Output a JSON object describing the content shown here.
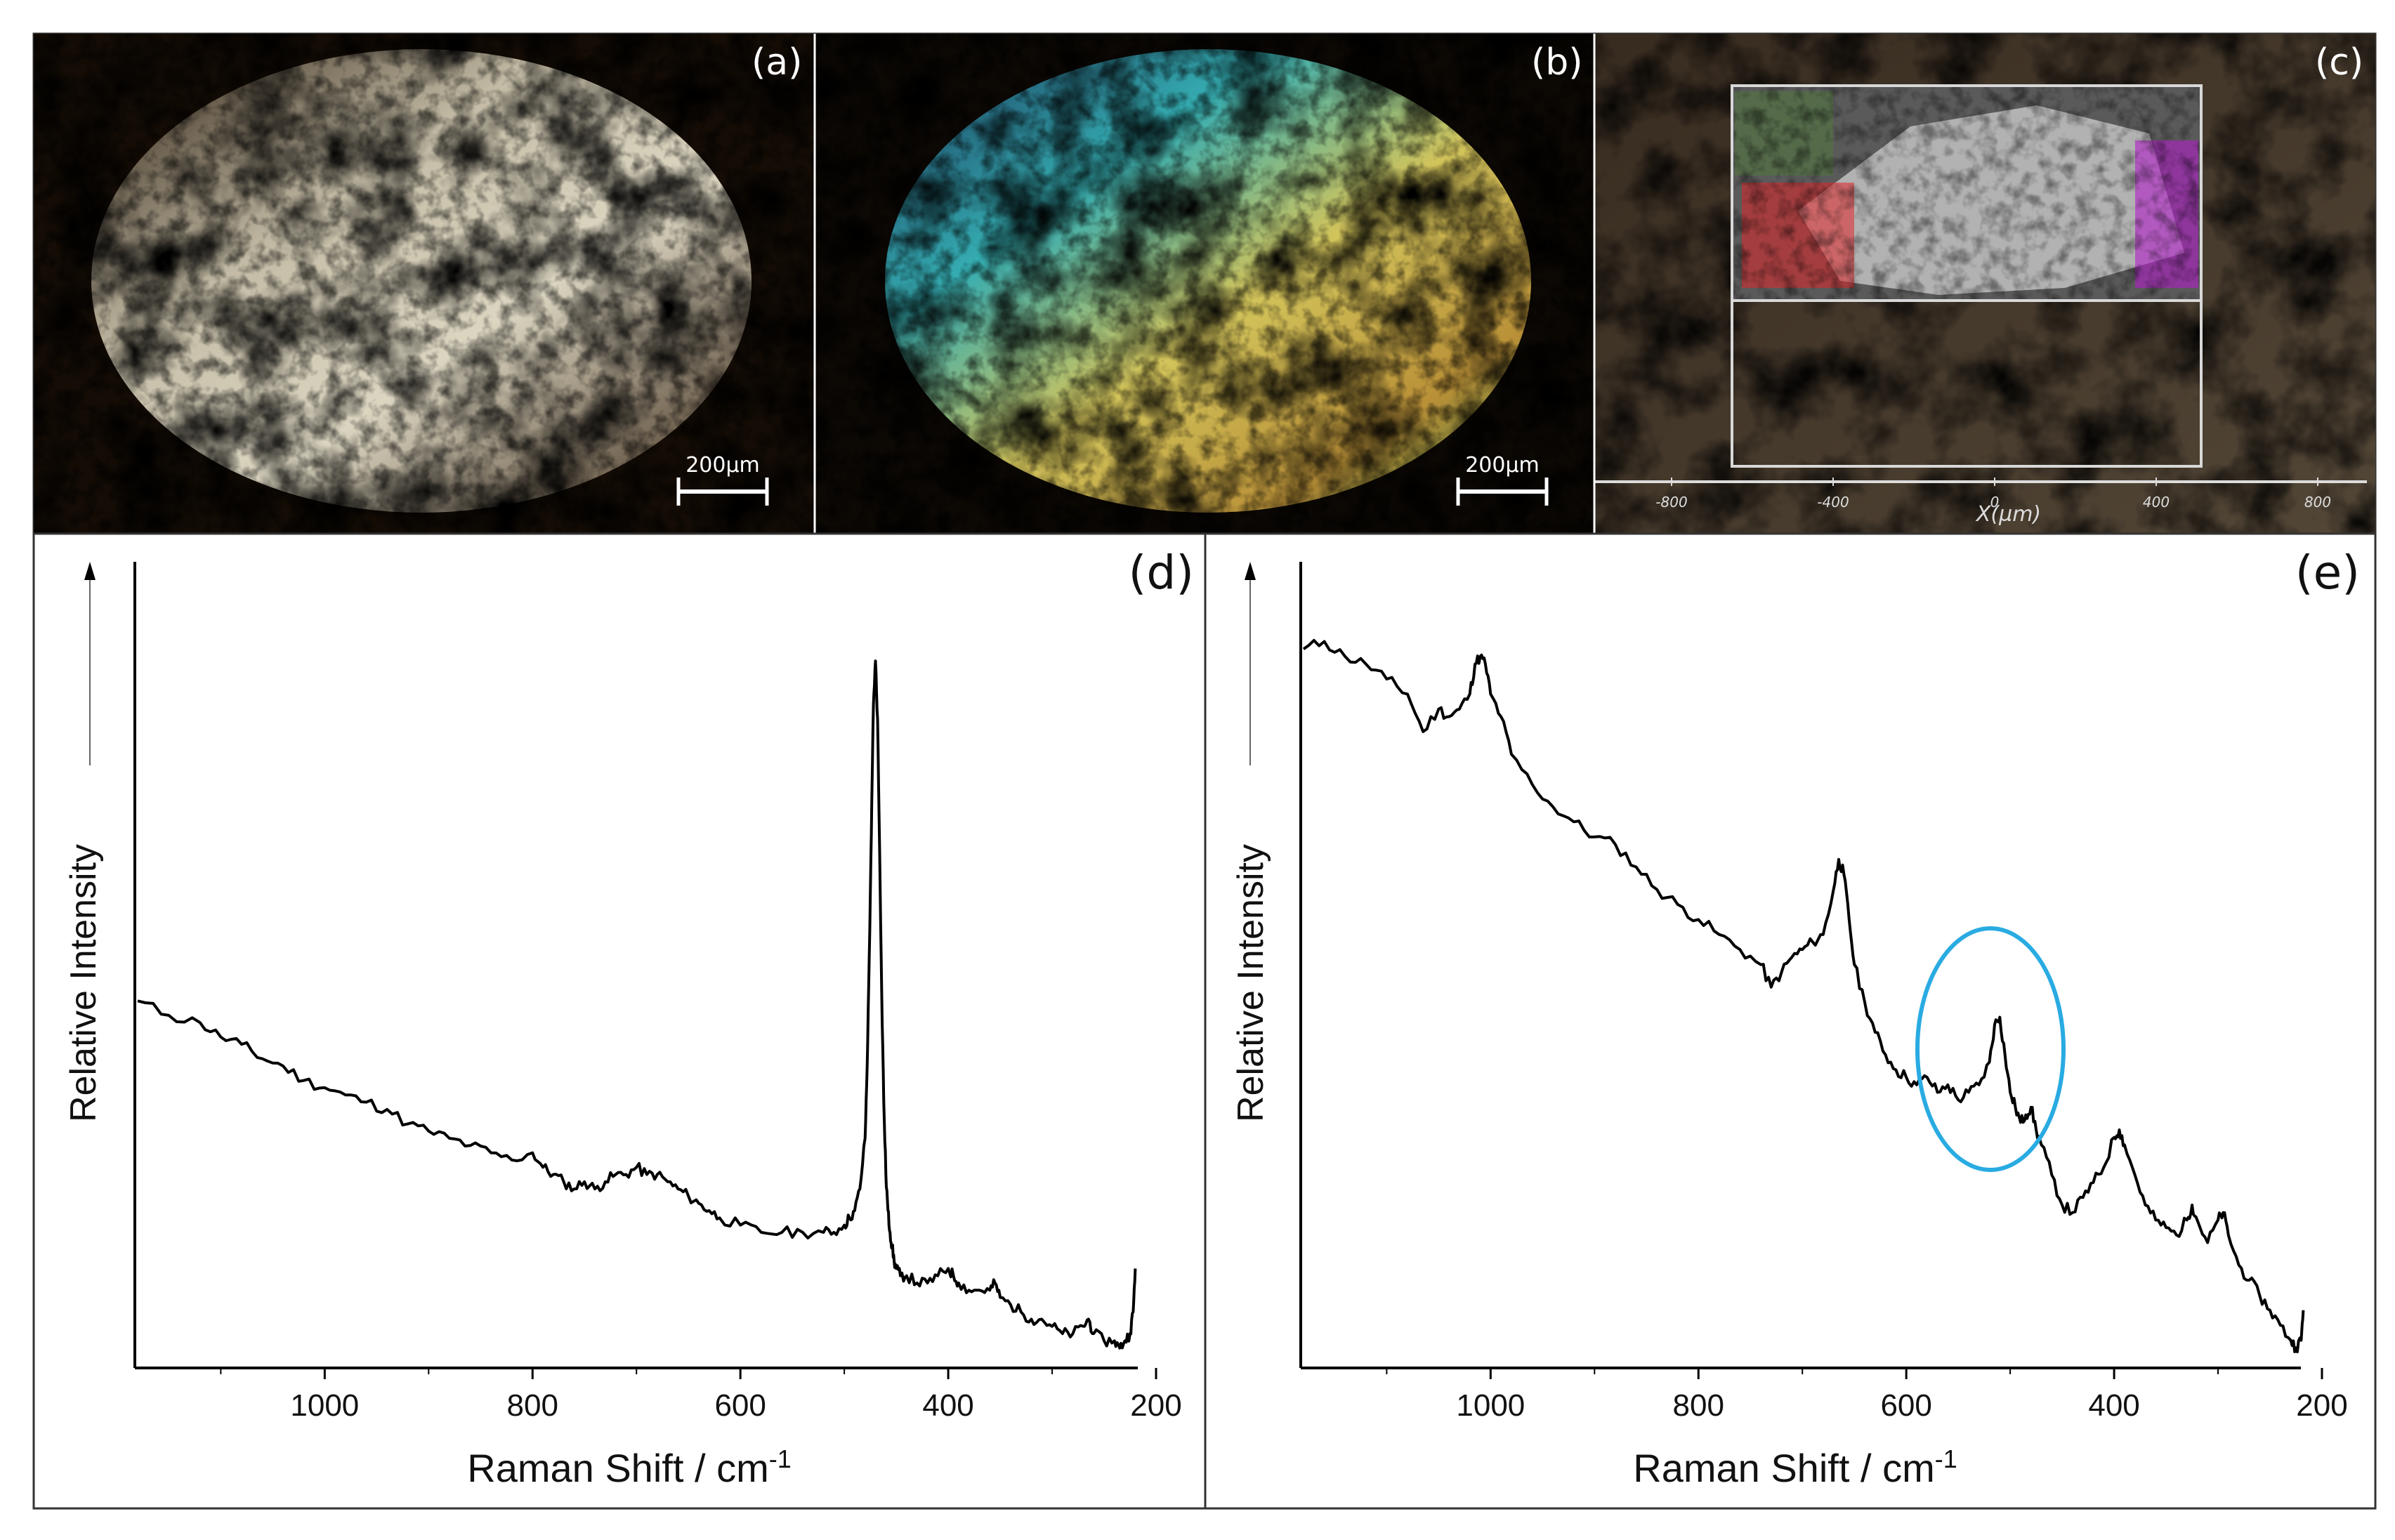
{
  "figure": {
    "panels": {
      "a": {
        "label": "(a)",
        "scale_bar": "200µm"
      },
      "b": {
        "label": "(b)",
        "scale_bar": "200µm"
      },
      "c": {
        "label": "(c)",
        "axis_title": "X(µm)",
        "ticks": [
          "-800",
          "-400",
          "0",
          "400",
          "800"
        ],
        "map_colors": {
          "red": "#e0262a",
          "magenta": "#b01ec8",
          "green": "#4a8a2a"
        }
      }
    },
    "colors": {
      "ellipse": "#29abe2",
      "trace": "#000000"
    }
  },
  "chart_data": [
    {
      "panel": "(d)",
      "type": "line",
      "title": "",
      "xlabel": "Raman Shift / cm",
      "xlabel_sup": "-1",
      "ylabel": "Relative Intensity",
      "xlim": [
        1180,
        200
      ],
      "ylim": [
        0,
        100
      ],
      "xticks": [
        "1000",
        "800",
        "600",
        "400",
        "200"
      ],
      "x": [
        1180,
        1150,
        1120,
        1100,
        1080,
        1060,
        1040,
        1020,
        1000,
        980,
        960,
        940,
        920,
        900,
        880,
        860,
        840,
        820,
        800,
        790,
        780,
        770,
        760,
        750,
        740,
        730,
        720,
        710,
        700,
        690,
        680,
        670,
        660,
        650,
        640,
        630,
        620,
        600,
        580,
        560,
        540,
        520,
        510,
        500,
        495,
        490,
        485,
        480,
        478,
        476,
        474,
        472,
        470,
        468,
        466,
        464,
        462,
        460,
        458,
        456,
        454,
        452,
        450,
        446,
        440,
        430,
        420,
        410,
        400,
        395,
        390,
        380,
        370,
        360,
        355,
        350,
        340,
        330,
        320,
        310,
        300,
        290,
        280,
        270,
        265,
        260,
        250,
        240,
        235,
        230,
        225,
        222,
        220
      ],
      "y": [
        49,
        47,
        46,
        44,
        43,
        41,
        40,
        38,
        37,
        36,
        35,
        34,
        32,
        31,
        30,
        29,
        28,
        27,
        28,
        26,
        25,
        24,
        23,
        24,
        23,
        24,
        25,
        25,
        26,
        25,
        25,
        24,
        23,
        22,
        21,
        20,
        19,
        18,
        17,
        17,
        17,
        17,
        17,
        18,
        19,
        20,
        23,
        30,
        40,
        55,
        72,
        90,
        96,
        88,
        70,
        50,
        35,
        25,
        20,
        17,
        15,
        13,
        12,
        11,
        11,
        10,
        10,
        11,
        12,
        11,
        10,
        9,
        9,
        9,
        10,
        8,
        7,
        6,
        5,
        5,
        4,
        3,
        3,
        4,
        5,
        3,
        2,
        2,
        1,
        2,
        3,
        6,
        12
      ]
    },
    {
      "panel": "(e)",
      "type": "line",
      "title": "",
      "xlabel": "Raman Shift / cm",
      "xlabel_sup": "-1",
      "ylabel": "Relative Intensity",
      "xlim": [
        1180,
        200
      ],
      "ylim": [
        0,
        100
      ],
      "xticks": [
        "1000",
        "800",
        "600",
        "400",
        "200"
      ],
      "x": [
        1180,
        1160,
        1140,
        1120,
        1100,
        1080,
        1065,
        1050,
        1040,
        1030,
        1020,
        1015,
        1010,
        1005,
        1000,
        990,
        980,
        960,
        940,
        920,
        900,
        880,
        860,
        840,
        820,
        800,
        780,
        760,
        740,
        730,
        720,
        710,
        700,
        690,
        680,
        670,
        665,
        660,
        655,
        650,
        640,
        630,
        620,
        610,
        600,
        590,
        580,
        570,
        560,
        550,
        540,
        530,
        520,
        515,
        510,
        505,
        500,
        495,
        490,
        485,
        480,
        475,
        470,
        460,
        450,
        440,
        430,
        420,
        410,
        400,
        395,
        390,
        380,
        370,
        360,
        350,
        340,
        330,
        325,
        320,
        310,
        300,
        295,
        290,
        280,
        270,
        260,
        250,
        240,
        230,
        225,
        220,
        218
      ],
      "y": [
        94,
        95,
        93,
        92,
        90,
        88,
        83,
        86,
        85,
        86,
        88,
        92,
        93,
        92,
        88,
        85,
        80,
        76,
        73,
        71,
        69,
        68,
        65,
        62,
        60,
        58,
        56,
        54,
        52,
        49,
        51,
        53,
        54,
        55,
        56,
        62,
        66,
        64,
        58,
        52,
        47,
        43,
        40,
        38,
        37,
        36,
        37,
        35,
        36,
        34,
        35,
        36,
        39,
        44,
        45,
        40,
        35,
        33,
        31,
        32,
        33,
        30,
        28,
        24,
        20,
        19,
        21,
        23,
        25,
        29,
        30,
        28,
        24,
        20,
        18,
        17,
        16,
        18,
        20,
        18,
        15,
        18,
        19,
        16,
        12,
        10,
        8,
        6,
        4,
        2,
        1,
        2,
        6
      ]
    }
  ]
}
